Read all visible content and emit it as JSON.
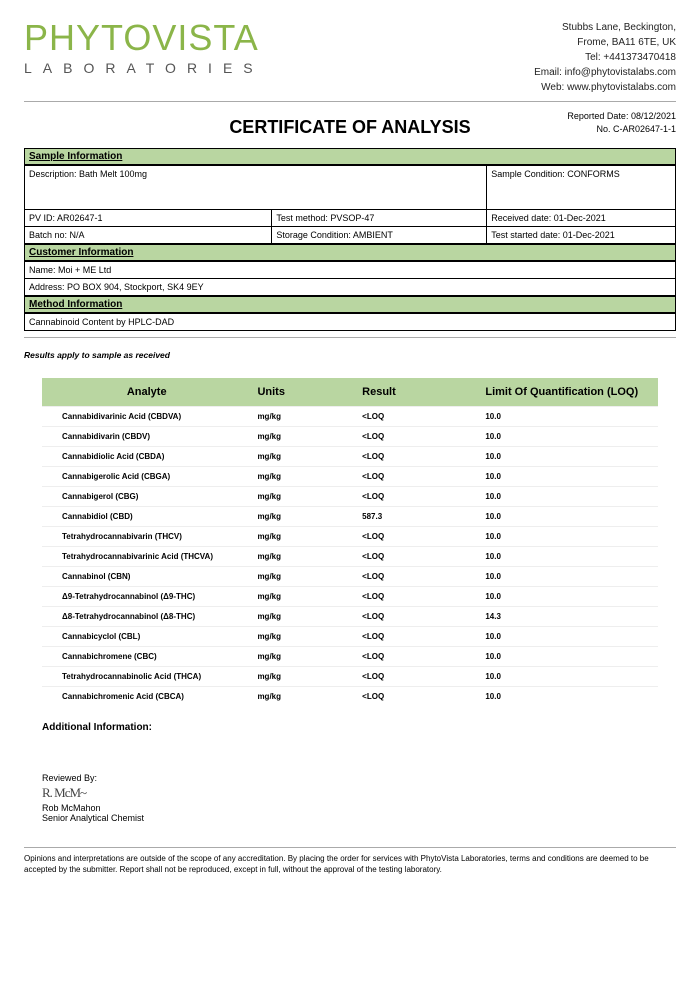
{
  "logo": {
    "brand_main": "PHYTOVISTA",
    "brand_sub": "LABORATORIES"
  },
  "contact": {
    "line1": "Stubbs Lane, Beckington,",
    "line2": "Frome, BA11 6TE, UK",
    "tel": "Tel: +441373470418",
    "email": "Email: info@phytovistalabs.com",
    "web": "Web: www.phytovistalabs.com"
  },
  "meta": {
    "reported_date_label": "Reported Date: ",
    "reported_date": "08/12/2021",
    "cert_no_label": "No. ",
    "cert_no": "C-AR02647-1-1"
  },
  "title": "CERTIFICATE OF ANALYSIS",
  "sections": {
    "sample": "Sample Information",
    "customer": "Customer Information",
    "method": "Method Information"
  },
  "sample": {
    "description": "Description: Bath Melt 100mg",
    "condition": "Sample Condition: CONFORMS",
    "pvid": "PV ID: AR02647-1",
    "test_method": "Test method: PVSOP-47",
    "received": "Received date: 01-Dec-2021",
    "batch": "Batch no: N/A",
    "storage": "Storage Condition: AMBIENT",
    "started": "Test started date: 01-Dec-2021"
  },
  "customer": {
    "name": "Name:   Moi + ME Ltd",
    "address": "Address:   PO BOX 904, Stockport, SK4 9EY"
  },
  "method": {
    "text": "Cannabinoid Content by HPLC-DAD"
  },
  "note": "Results apply to sample as received",
  "table": {
    "headers": {
      "analyte": "Analyte",
      "units": "Units",
      "result": "Result",
      "loq": "Limit Of Quantification (LOQ)"
    },
    "rows": [
      {
        "a": "Cannabidivarinic Acid (CBDVA)",
        "u": "mg/kg",
        "r": "<LOQ",
        "l": "10.0"
      },
      {
        "a": "Cannabidivarin (CBDV)",
        "u": "mg/kg",
        "r": "<LOQ",
        "l": "10.0"
      },
      {
        "a": "Cannabidiolic Acid (CBDA)",
        "u": "mg/kg",
        "r": "<LOQ",
        "l": "10.0"
      },
      {
        "a": "Cannabigerolic Acid (CBGA)",
        "u": "mg/kg",
        "r": "<LOQ",
        "l": "10.0"
      },
      {
        "a": "Cannabigerol (CBG)",
        "u": "mg/kg",
        "r": "<LOQ",
        "l": "10.0"
      },
      {
        "a": "Cannabidiol (CBD)",
        "u": "mg/kg",
        "r": "587.3",
        "l": "10.0"
      },
      {
        "a": "Tetrahydrocannabivarin (THCV)",
        "u": "mg/kg",
        "r": "<LOQ",
        "l": "10.0"
      },
      {
        "a": "Tetrahydrocannabivarinic Acid (THCVA)",
        "u": "mg/kg",
        "r": "<LOQ",
        "l": "10.0"
      },
      {
        "a": "Cannabinol (CBN)",
        "u": "mg/kg",
        "r": "<LOQ",
        "l": "10.0"
      },
      {
        "a": "Δ9-Tetrahydrocannabinol (Δ9-THC)",
        "u": "mg/kg",
        "r": "<LOQ",
        "l": "10.0"
      },
      {
        "a": "Δ8-Tetrahydrocannabinol (Δ8-THC)",
        "u": "mg/kg",
        "r": "<LOQ",
        "l": "14.3"
      },
      {
        "a": "Cannabicyclol (CBL)",
        "u": "mg/kg",
        "r": "<LOQ",
        "l": "10.0"
      },
      {
        "a": "Cannabichromene (CBC)",
        "u": "mg/kg",
        "r": "<LOQ",
        "l": "10.0"
      },
      {
        "a": "Tetrahydrocannabinolic Acid (THCA)",
        "u": "mg/kg",
        "r": "<LOQ",
        "l": "10.0"
      },
      {
        "a": "Cannabichromenic Acid (CBCA)",
        "u": "mg/kg",
        "r": "<LOQ",
        "l": "10.0"
      }
    ]
  },
  "additional": "Additional Information:",
  "review": {
    "label": "Reviewed By:",
    "signature": "R. McM~",
    "name": "Rob McMahon",
    "title": "Senior Analytical Chemist"
  },
  "disclaimer": "Opinions and interpretations are outside of the scope of any accreditation. By placing the order for services with PhytoVista Laboratories, terms and conditions are deemed to be accepted by the submitter. Report shall not be reproduced, except in full, without the approval of the testing laboratory."
}
